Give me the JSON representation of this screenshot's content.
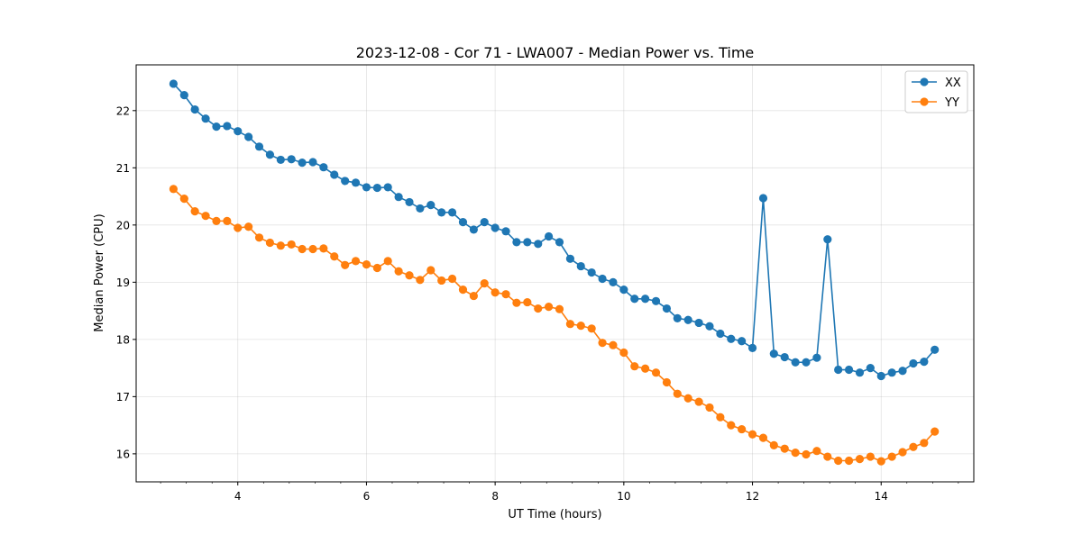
{
  "chart_data": {
    "type": "line",
    "title": "2023-12-08 - Cor 71 - LWA007 - Median Power vs. Time",
    "xlabel": "UT Time (hours)",
    "ylabel": "Median Power (CPU)",
    "xlim": [
      2.42,
      15.44
    ],
    "ylim": [
      15.51,
      22.8
    ],
    "xticks": [
      4,
      6,
      8,
      10,
      12,
      14
    ],
    "yticks": [
      16,
      17,
      18,
      19,
      20,
      21,
      22
    ],
    "grid": true,
    "legend_position": "top-right",
    "x": [
      3.0,
      3.167,
      3.333,
      3.5,
      3.667,
      3.833,
      4.0,
      4.167,
      4.333,
      4.5,
      4.667,
      4.833,
      5.0,
      5.167,
      5.333,
      5.5,
      5.667,
      5.833,
      6.0,
      6.167,
      6.333,
      6.5,
      6.667,
      6.833,
      7.0,
      7.167,
      7.333,
      7.5,
      7.667,
      7.833,
      8.0,
      8.167,
      8.333,
      8.5,
      8.667,
      8.833,
      9.0,
      9.167,
      9.333,
      9.5,
      9.667,
      9.833,
      10.0,
      10.167,
      10.333,
      10.5,
      10.667,
      10.833,
      11.0,
      11.167,
      11.333,
      11.5,
      11.667,
      11.833,
      12.0,
      12.167,
      12.333,
      12.5,
      12.667,
      12.833,
      13.0,
      13.167,
      13.333,
      13.5,
      13.667,
      13.833,
      14.0,
      14.167,
      14.333,
      14.5,
      14.667,
      14.833
    ],
    "series": [
      {
        "name": "XX",
        "color": "#1f77b4",
        "values": [
          22.47,
          22.27,
          22.02,
          21.86,
          21.72,
          21.73,
          21.64,
          21.54,
          21.37,
          21.23,
          21.14,
          21.15,
          21.09,
          21.1,
          21.01,
          20.88,
          20.77,
          20.74,
          20.66,
          20.65,
          20.66,
          20.49,
          20.4,
          20.29,
          20.35,
          20.22,
          20.22,
          20.05,
          19.92,
          20.05,
          19.95,
          19.89,
          19.7,
          19.7,
          19.67,
          19.8,
          19.7,
          19.41,
          19.28,
          19.17,
          19.06,
          19.0,
          18.87,
          18.71,
          18.71,
          18.67,
          18.54,
          18.37,
          18.34,
          18.29,
          18.23,
          18.1,
          18.01,
          17.97,
          17.85,
          20.47,
          17.75,
          17.69,
          17.6,
          17.6,
          17.68,
          19.75,
          17.47,
          17.47,
          17.42,
          17.5,
          17.36,
          17.42,
          17.45,
          17.58,
          17.61,
          17.82
        ]
      },
      {
        "name": "YY",
        "color": "#ff7f0e",
        "values": [
          20.63,
          20.46,
          20.24,
          20.16,
          20.07,
          20.07,
          19.95,
          19.97,
          19.78,
          19.69,
          19.64,
          19.66,
          19.58,
          19.58,
          19.59,
          19.45,
          19.3,
          19.37,
          19.31,
          19.25,
          19.37,
          19.19,
          19.12,
          19.04,
          19.21,
          19.03,
          19.06,
          18.87,
          18.76,
          18.98,
          18.82,
          18.79,
          18.64,
          18.65,
          18.54,
          18.57,
          18.53,
          18.27,
          18.24,
          18.19,
          17.94,
          17.9,
          17.77,
          17.53,
          17.49,
          17.42,
          17.25,
          17.05,
          16.97,
          16.91,
          16.81,
          16.64,
          16.5,
          16.43,
          16.34,
          16.28,
          16.15,
          16.09,
          16.02,
          15.99,
          16.05,
          15.95,
          15.88,
          15.88,
          15.91,
          15.95,
          15.87,
          15.95,
          16.03,
          16.12,
          16.19,
          16.39
        ]
      }
    ]
  }
}
